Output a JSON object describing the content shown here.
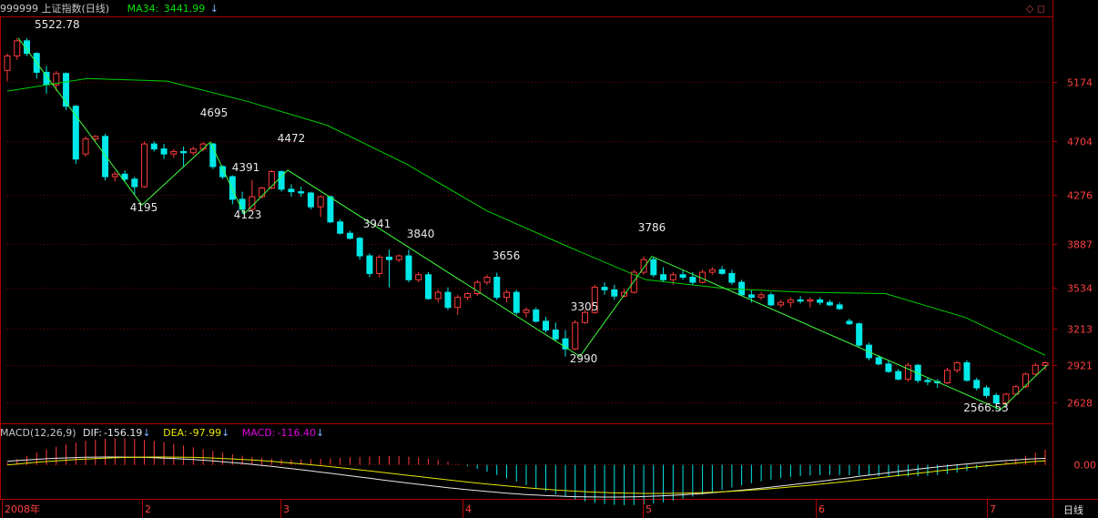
{
  "header": {
    "title": "999999 上证指数(日线)",
    "ma_label": "MA34:",
    "ma_value": "3441.99"
  },
  "macd_header": {
    "name": "MACD(12,26,9)",
    "dif_label": "DIF:",
    "dif_value": "-156.19",
    "dea_label": "DEA:",
    "dea_value": "-97.99",
    "macd_label": "MACD:",
    "macd_value": "-116.40"
  },
  "period_label": "日线",
  "colors": {
    "up": "#ff3b3b",
    "down": "#00e8e8",
    "ma": "#00d000",
    "dif": "#e8e8e8",
    "dea": "#e6e600",
    "frame": "#b00000"
  },
  "chart_data": {
    "type": "candlestick",
    "y_ticks": [
      5174,
      4704,
      4276,
      3887,
      3534,
      3213,
      2921,
      2628
    ],
    "y_range": [
      2480,
      5680
    ],
    "macd_ticks": [
      "0.00"
    ],
    "x_ticks": [
      "2008年",
      "2",
      "3",
      "4",
      "5",
      "6",
      "7"
    ],
    "annotations": [
      "5522.78",
      "4195",
      "4695",
      "4391",
      "4123",
      "4472",
      "3941",
      "3840",
      "3656",
      "3305",
      "2990",
      "3786",
      "2566.53"
    ],
    "zigzag": [
      5522.78,
      4195,
      4695,
      4123,
      4472,
      2990,
      3786,
      2566.53,
      2921
    ],
    "ma34": [
      5100,
      5200,
      5180,
      5020,
      4830,
      4520,
      4150,
      3870,
      3600,
      3530,
      3500,
      3490,
      3300,
      3000
    ],
    "candles": [
      [
        5265,
        5400,
        5180,
        5380
      ],
      [
        5380,
        5522,
        5350,
        5500
      ],
      [
        5500,
        5520,
        5380,
        5400
      ],
      [
        5400,
        5410,
        5200,
        5250
      ],
      [
        5250,
        5300,
        5080,
        5150
      ],
      [
        5150,
        5260,
        5100,
        5240
      ],
      [
        5240,
        5250,
        4950,
        4980
      ],
      [
        4980,
        4990,
        4520,
        4560
      ],
      [
        4600,
        4740,
        4580,
        4720
      ],
      [
        4720,
        4750,
        4700,
        4740
      ],
      [
        4740,
        4760,
        4390,
        4420
      ],
      [
        4420,
        4460,
        4380,
        4440
      ],
      [
        4440,
        4470,
        4380,
        4400
      ],
      [
        4400,
        4420,
        4280,
        4340
      ],
      [
        4340,
        4700,
        4330,
        4680
      ],
      [
        4680,
        4700,
        4620,
        4640
      ],
      [
        4640,
        4680,
        4560,
        4600
      ],
      [
        4600,
        4640,
        4570,
        4620
      ],
      [
        4620,
        4660,
        4500,
        4610
      ],
      [
        4610,
        4660,
        4590,
        4640
      ],
      [
        4640,
        4695,
        4620,
        4680
      ],
      [
        4680,
        4690,
        4480,
        4500
      ],
      [
        4500,
        4510,
        4400,
        4420
      ],
      [
        4420,
        4430,
        4200,
        4240
      ],
      [
        4240,
        4300,
        4123,
        4160
      ],
      [
        4160,
        4391,
        4150,
        4260
      ],
      [
        4260,
        4340,
        4250,
        4330
      ],
      [
        4330,
        4472,
        4320,
        4460
      ],
      [
        4460,
        4470,
        4300,
        4320
      ],
      [
        4320,
        4360,
        4260,
        4300
      ],
      [
        4300,
        4340,
        4260,
        4290
      ],
      [
        4290,
        4300,
        4160,
        4180
      ],
      [
        4180,
        4270,
        4100,
        4260
      ],
      [
        4260,
        4270,
        4050,
        4060
      ],
      [
        4060,
        4080,
        3960,
        3970
      ],
      [
        3970,
        3990,
        3920,
        3930
      ],
      [
        3930,
        3941,
        3760,
        3790
      ],
      [
        3790,
        3810,
        3620,
        3650
      ],
      [
        3650,
        3800,
        3620,
        3780
      ],
      [
        3780,
        3840,
        3540,
        3760
      ],
      [
        3760,
        3800,
        3740,
        3790
      ],
      [
        3790,
        3840,
        3580,
        3600
      ],
      [
        3600,
        3660,
        3580,
        3640
      ],
      [
        3640,
        3660,
        3440,
        3450
      ],
      [
        3450,
        3520,
        3420,
        3500
      ],
      [
        3500,
        3540,
        3360,
        3380
      ],
      [
        3380,
        3480,
        3320,
        3460
      ],
      [
        3460,
        3500,
        3440,
        3490
      ],
      [
        3490,
        3600,
        3470,
        3580
      ],
      [
        3580,
        3640,
        3560,
        3620
      ],
      [
        3620,
        3656,
        3440,
        3460
      ],
      [
        3460,
        3520,
        3420,
        3500
      ],
      [
        3500,
        3520,
        3320,
        3340
      ],
      [
        3340,
        3380,
        3300,
        3360
      ],
      [
        3360,
        3380,
        3260,
        3270
      ],
      [
        3270,
        3305,
        3180,
        3200
      ],
      [
        3200,
        3260,
        3110,
        3130
      ],
      [
        3130,
        3200,
        2990,
        3050
      ],
      [
        3050,
        3280,
        3040,
        3260
      ],
      [
        3260,
        3360,
        3250,
        3340
      ],
      [
        3340,
        3560,
        3330,
        3540
      ],
      [
        3540,
        3580,
        3480,
        3520
      ],
      [
        3520,
        3560,
        3440,
        3470
      ],
      [
        3470,
        3530,
        3460,
        3500
      ],
      [
        3500,
        3680,
        3490,
        3660
      ],
      [
        3660,
        3786,
        3640,
        3760
      ],
      [
        3760,
        3780,
        3620,
        3640
      ],
      [
        3640,
        3700,
        3580,
        3600
      ],
      [
        3600,
        3660,
        3560,
        3640
      ],
      [
        3640,
        3680,
        3600,
        3620
      ],
      [
        3620,
        3660,
        3560,
        3580
      ],
      [
        3580,
        3680,
        3570,
        3660
      ],
      [
        3660,
        3700,
        3640,
        3680
      ],
      [
        3680,
        3710,
        3640,
        3650
      ],
      [
        3650,
        3680,
        3560,
        3580
      ],
      [
        3580,
        3600,
        3470,
        3480
      ],
      [
        3480,
        3520,
        3420,
        3460
      ],
      [
        3460,
        3500,
        3440,
        3480
      ],
      [
        3480,
        3500,
        3390,
        3400
      ],
      [
        3400,
        3440,
        3380,
        3420
      ],
      [
        3420,
        3460,
        3380,
        3440
      ],
      [
        3440,
        3470,
        3410,
        3430
      ],
      [
        3430,
        3460,
        3380,
        3440
      ],
      [
        3440,
        3460,
        3400,
        3420
      ],
      [
        3420,
        3440,
        3390,
        3400
      ],
      [
        3400,
        3420,
        3360,
        3370
      ],
      [
        3270,
        3290,
        3240,
        3250
      ],
      [
        3250,
        3260,
        3060,
        3080
      ],
      [
        3080,
        3100,
        2960,
        2980
      ],
      [
        2980,
        3000,
        2920,
        2930
      ],
      [
        2930,
        2960,
        2860,
        2870
      ],
      [
        2870,
        2890,
        2800,
        2810
      ],
      [
        2810,
        2940,
        2790,
        2920
      ],
      [
        2920,
        2930,
        2780,
        2800
      ],
      [
        2800,
        2820,
        2760,
        2790
      ],
      [
        2790,
        2810,
        2740,
        2780
      ],
      [
        2780,
        2900,
        2770,
        2880
      ],
      [
        2880,
        2950,
        2860,
        2940
      ],
      [
        2940,
        2960,
        2790,
        2800
      ],
      [
        2800,
        2820,
        2720,
        2740
      ],
      [
        2740,
        2760,
        2660,
        2680
      ],
      [
        2680,
        2700,
        2566,
        2620
      ],
      [
        2620,
        2700,
        2600,
        2690
      ],
      [
        2690,
        2760,
        2680,
        2750
      ],
      [
        2750,
        2860,
        2740,
        2850
      ],
      [
        2850,
        2940,
        2840,
        2920
      ],
      [
        2920,
        2950,
        2880,
        2940
      ]
    ]
  }
}
